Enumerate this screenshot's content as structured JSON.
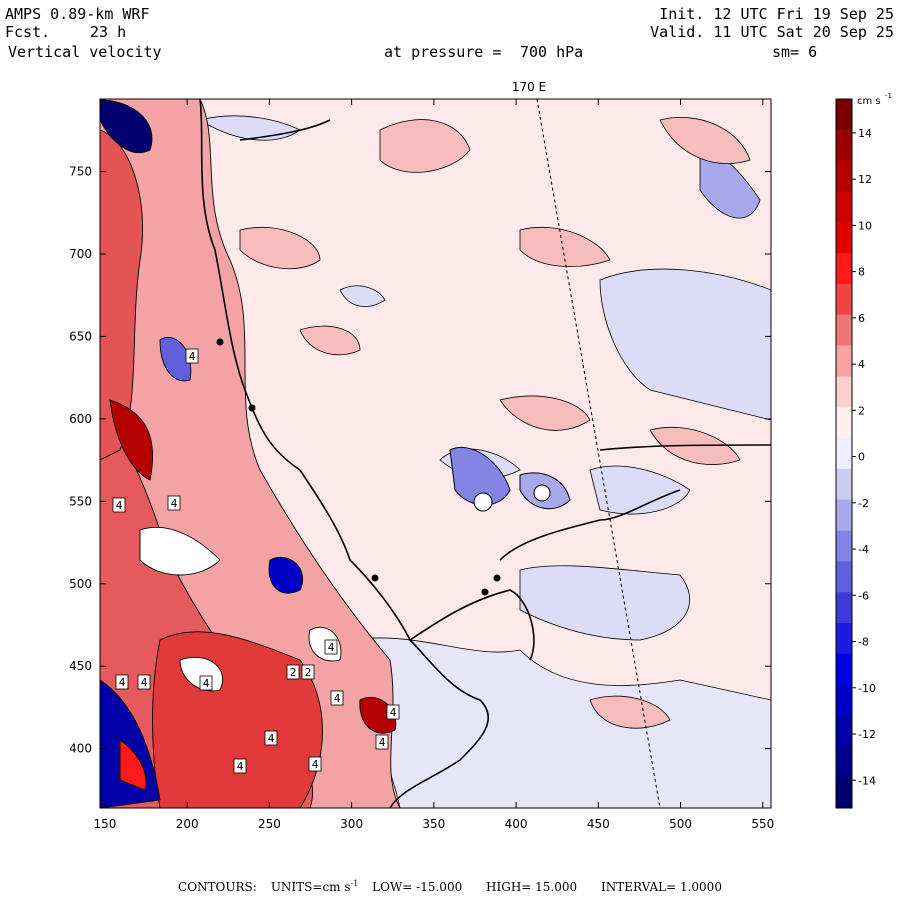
{
  "header": {
    "model": "AMPS 0.89-km WRF",
    "forecast_label": "Fcst.",
    "forecast_value": "23 h",
    "field": "Vertical velocity",
    "init": "Init. 12 UTC Fri 19 Sep 25",
    "valid": "Valid. 11 UTC Sat 20 Sep 25",
    "pressure_label": "at pressure =",
    "pressure_value": "700 hPa",
    "smoothing": "sm= 6"
  },
  "map": {
    "meridian_label": "170 E",
    "x_ticks": [
      "150",
      "200",
      "250",
      "300",
      "350",
      "400",
      "450",
      "500",
      "550"
    ],
    "y_ticks": [
      "750",
      "700",
      "650",
      "600",
      "550",
      "500",
      "450",
      "400"
    ],
    "x_range": [
      147,
      555
    ],
    "y_range": [
      364,
      794
    ],
    "contour_labels": [
      "4",
      "4",
      "4",
      "4",
      "4",
      "4",
      "4",
      "4",
      "4",
      "4",
      "2",
      "2",
      "4",
      "4",
      "4"
    ]
  },
  "colorbar": {
    "units": "cm s",
    "units_exp": "-1",
    "labels": [
      "14",
      "12",
      "10",
      "8",
      "6",
      "4",
      "2",
      "0",
      "-2",
      "-4",
      "-6",
      "-8",
      "-10",
      "-12",
      "-14"
    ],
    "colors": [
      "#7a0000",
      "#9a0000",
      "#b40000",
      "#cc0000",
      "#e00000",
      "#ff1a1a",
      "#f04545",
      "#f07777",
      "#f5a5a5",
      "#fad0d0",
      "#fff0f0",
      "#eeeeff",
      "#ccccf0",
      "#a8a8ec",
      "#8484e4",
      "#6060dc",
      "#3c3cd8",
      "#1a1ae0",
      "#0000e8",
      "#0000c8",
      "#0000a8",
      "#00008c",
      "#000070"
    ]
  },
  "footer": {
    "contours_label": "CONTOURS:",
    "units": "UNITS=cm s",
    "units_exp": "-1",
    "low": "LOW= -15.000",
    "high": "HIGH= 15.000",
    "interval": "INTERVAL= 1.0000"
  }
}
